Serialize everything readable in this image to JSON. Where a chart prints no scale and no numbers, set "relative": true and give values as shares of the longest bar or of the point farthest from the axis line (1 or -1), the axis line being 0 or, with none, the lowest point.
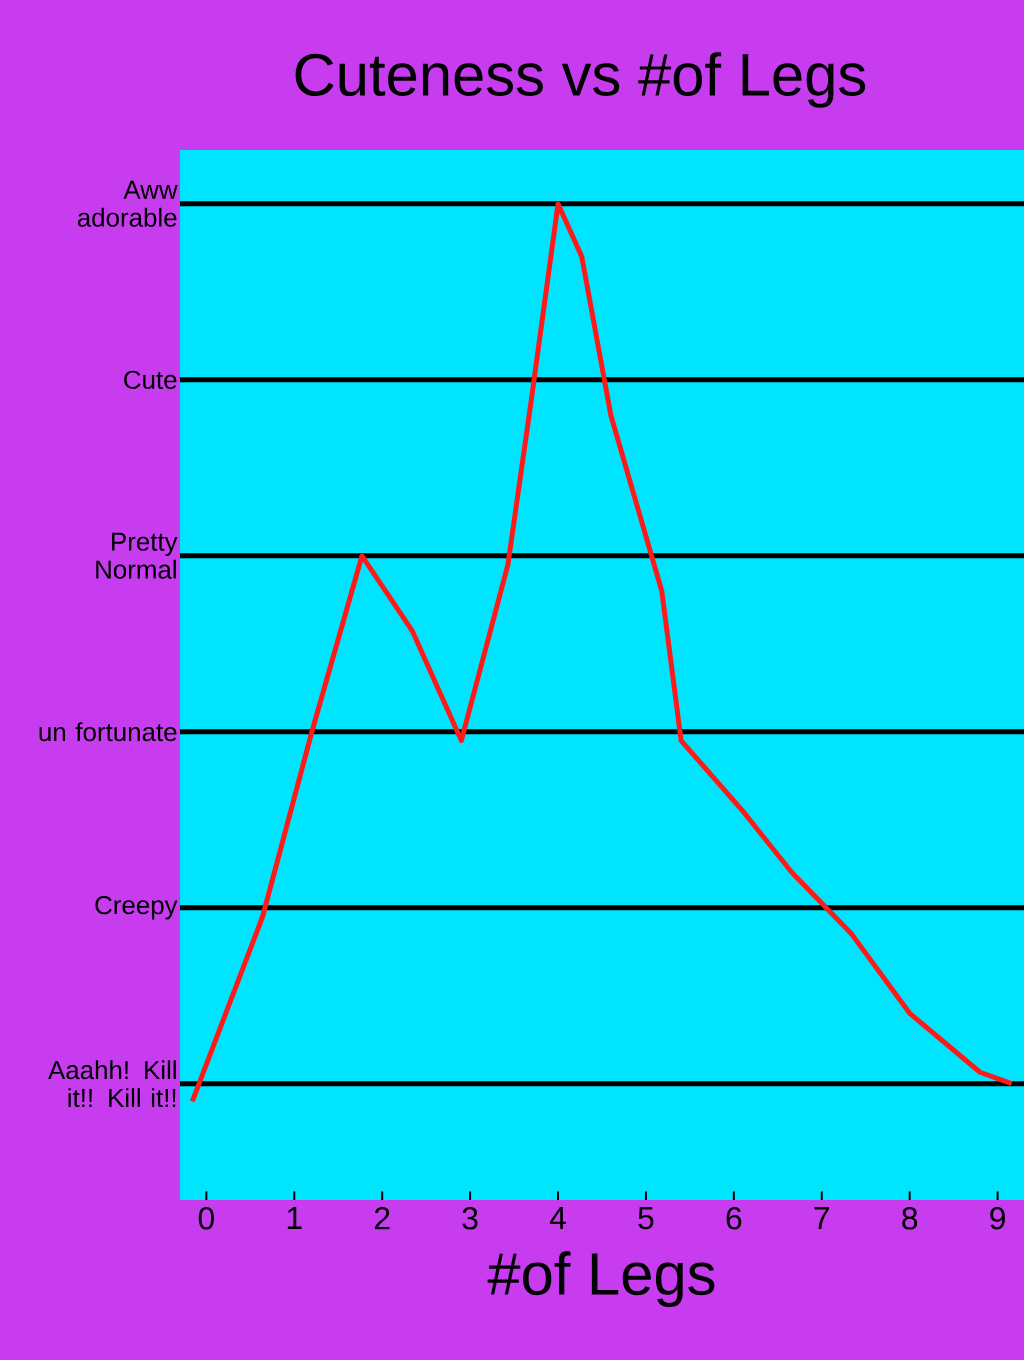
{
  "chart_data": {
    "type": "line",
    "title": "Cuteness vs #of Legs",
    "xlabel": "#of Legs",
    "relative": true,
    "x": [
      -0.16,
      0.64,
      1.2,
      1.77,
      2.34,
      2.9,
      3.43,
      3.7,
      4.0,
      4.27,
      4.6,
      5.18,
      5.4,
      6.1,
      6.66,
      7.34,
      8.0,
      8.8,
      9.16
    ],
    "series": [
      {
        "color": "#ff1a1a",
        "values": [
          -0.02,
          0.19,
          0.4,
          0.6,
          0.515,
          0.39,
          0.59,
          0.78,
          1.0,
          0.94,
          0.76,
          0.56,
          0.39,
          0.31,
          0.24,
          0.17,
          0.08,
          0.013,
          0
        ]
      }
    ],
    "xlim": [
      -0.3,
      9.3
    ],
    "xticks": [
      0,
      1,
      2,
      3,
      4,
      5,
      6,
      7,
      8,
      9
    ],
    "ref_lines": [
      {
        "axis": "y",
        "value": 0,
        "label": "Aaahh! Kill it!! Kill it!!",
        "color": "#000000"
      },
      {
        "axis": "y",
        "value": 0.2,
        "label": "Creepy",
        "color": "#000000"
      },
      {
        "axis": "y",
        "value": 0.4,
        "label": "un fortunate",
        "color": "#000000"
      },
      {
        "axis": "y",
        "value": 0.6,
        "label": "Pretty Normal",
        "color": "#000000"
      },
      {
        "axis": "y",
        "value": 0.8,
        "label": "Cute",
        "color": "#000000"
      },
      {
        "axis": "y",
        "value": 1.0,
        "label": "Aww adorable",
        "color": "#000000"
      }
    ],
    "marker": "none",
    "line_style": "solid"
  }
}
